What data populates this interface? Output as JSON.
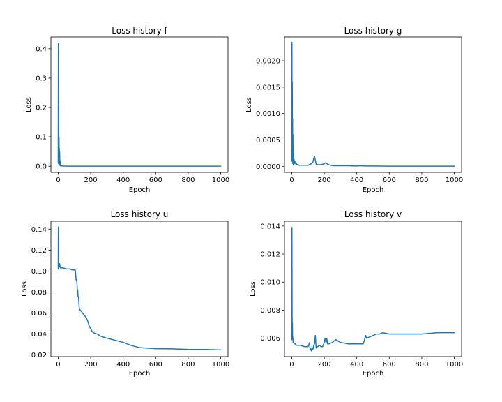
{
  "chart_data": [
    {
      "type": "line",
      "title": "Loss history f",
      "xlabel": "Epoch",
      "ylabel": "Loss",
      "xlim": [
        -45,
        1045
      ],
      "ylim": [
        -0.021,
        0.44
      ],
      "xticks": [
        "0",
        "200",
        "400",
        "600",
        "800",
        "1000"
      ],
      "xtick_values": [
        0,
        200,
        400,
        600,
        800,
        1000
      ],
      "yticks": [
        "0.0",
        "0.1",
        "0.2",
        "0.3",
        "0.4"
      ],
      "ytick_values": [
        0.0,
        0.1,
        0.2,
        0.3,
        0.4
      ],
      "color": "#1f77b4",
      "series": [
        {
          "name": "f",
          "x": [
            0,
            1,
            2,
            3,
            4,
            5,
            6,
            7,
            8,
            9,
            10,
            11,
            12,
            13,
            14,
            15,
            16,
            18,
            20,
            22,
            25,
            30,
            35,
            40,
            50,
            60,
            80,
            100,
            150,
            200,
            300,
            400,
            500,
            600,
            700,
            800,
            900,
            1000
          ],
          "y": [
            0.01,
            0.418,
            0.05,
            0.22,
            0.02,
            0.1,
            0.01,
            0.06,
            0.005,
            0.05,
            0.003,
            0.02,
            0.002,
            0.015,
            0.001,
            0.008,
            0.002,
            0.004,
            0.001,
            0.002,
            0.001,
            0.0005,
            0.0005,
            0.0003,
            0.0002,
            0.0001,
            0.0001,
            0.0001,
            0.0,
            0.0,
            0.0,
            0.0,
            0.0,
            0.0,
            0.0,
            0.0,
            0.0,
            0.0
          ]
        }
      ]
    },
    {
      "type": "line",
      "title": "Loss history g",
      "xlabel": "Epoch",
      "ylabel": "Loss",
      "xlim": [
        -45,
        1045
      ],
      "ylim": [
        -0.000115,
        0.00245
      ],
      "xticks": [
        "0",
        "200",
        "400",
        "600",
        "800",
        "1000"
      ],
      "xtick_values": [
        0,
        200,
        400,
        600,
        800,
        1000
      ],
      "yticks": [
        "0.0000",
        "0.0005",
        "0.0010",
        "0.0015",
        "0.0020"
      ],
      "ytick_values": [
        0.0,
        0.0005,
        0.001,
        0.0015,
        0.002
      ],
      "color": "#1f77b4",
      "series": [
        {
          "name": "g",
          "x": [
            0,
            1,
            2,
            3,
            4,
            5,
            6,
            7,
            8,
            9,
            10,
            11,
            12,
            13,
            14,
            15,
            16,
            18,
            20,
            22,
            25,
            28,
            30,
            35,
            40,
            45,
            50,
            60,
            70,
            80,
            100,
            120,
            130,
            135,
            140,
            150,
            160,
            180,
            200,
            210,
            220,
            240,
            260,
            300,
            350,
            400,
            420,
            450,
            500,
            600,
            700,
            800,
            900,
            1000
          ],
          "y": [
            0.0001,
            0.00235,
            0.0004,
            0.0016,
            0.0001,
            0.0009,
            5e-05,
            0.0006,
            5e-05,
            0.00035,
            2e-05,
            0.00025,
            0.0001,
            0.00015,
            8e-05,
            0.00012,
            5e-05,
            0.0001,
            6e-05,
            8e-05,
            4e-05,
            6e-05,
            4e-05,
            3e-05,
            3e-05,
            2e-05,
            2e-05,
            2e-05,
            2e-05,
            2e-05,
            2e-05,
            5e-05,
            8e-05,
            0.00015,
            0.00019,
            4e-05,
            3e-05,
            3e-05,
            5e-05,
            7e-05,
            4e-05,
            2e-05,
            1e-05,
            1e-05,
            1e-05,
            5e-06,
            1e-05,
            5e-06,
            5e-06,
            3e-06,
            3e-06,
            3e-06,
            3e-06,
            3e-06
          ]
        }
      ]
    },
    {
      "type": "line",
      "title": "Loss history u",
      "xlabel": "Epoch",
      "ylabel": "Loss",
      "xlim": [
        -45,
        1045
      ],
      "ylim": [
        0.0184,
        0.1475
      ],
      "xticks": [
        "0",
        "200",
        "400",
        "600",
        "800",
        "1000"
      ],
      "xtick_values": [
        0,
        200,
        400,
        600,
        800,
        1000
      ],
      "yticks": [
        "0.02",
        "0.04",
        "0.06",
        "0.08",
        "0.10",
        "0.12",
        "0.14"
      ],
      "ytick_values": [
        0.02,
        0.04,
        0.06,
        0.08,
        0.1,
        0.12,
        0.14
      ],
      "color": "#1f77b4",
      "series": [
        {
          "name": "u",
          "x": [
            0,
            1,
            3,
            5,
            7,
            9,
            11,
            13,
            15,
            20,
            30,
            50,
            70,
            90,
            105,
            110,
            112,
            115,
            118,
            120,
            122,
            125,
            130,
            135,
            140,
            150,
            160,
            170,
            180,
            190,
            200,
            210,
            220,
            240,
            260,
            300,
            350,
            400,
            450,
            500,
            600,
            700,
            800,
            900,
            1000
          ],
          "y": [
            0.102,
            0.142,
            0.103,
            0.106,
            0.104,
            0.107,
            0.105,
            0.103,
            0.104,
            0.103,
            0.103,
            0.102,
            0.102,
            0.101,
            0.101,
            0.092,
            0.091,
            0.09,
            0.08,
            0.082,
            0.076,
            0.075,
            0.064,
            0.063,
            0.062,
            0.06,
            0.058,
            0.056,
            0.053,
            0.048,
            0.045,
            0.042,
            0.041,
            0.04,
            0.038,
            0.036,
            0.034,
            0.032,
            0.029,
            0.027,
            0.026,
            0.0258,
            0.0253,
            0.0252,
            0.0248
          ]
        }
      ]
    },
    {
      "type": "line",
      "title": "Loss history v",
      "xlabel": "Epoch",
      "ylabel": "Loss",
      "xlim": [
        -45,
        1045
      ],
      "ylim": [
        0.00469,
        0.01434
      ],
      "xticks": [
        "0",
        "200",
        "400",
        "600",
        "800",
        "1000"
      ],
      "xtick_values": [
        0,
        200,
        400,
        600,
        800,
        1000
      ],
      "yticks": [
        "0.006",
        "0.008",
        "0.010",
        "0.012",
        "0.014"
      ],
      "ytick_values": [
        0.006,
        0.008,
        0.01,
        0.012,
        0.014
      ],
      "color": "#1f77b4",
      "series": [
        {
          "name": "v",
          "x": [
            0,
            1,
            2,
            3,
            4,
            5,
            6,
            8,
            10,
            15,
            20,
            30,
            50,
            80,
            100,
            110,
            112,
            115,
            120,
            125,
            130,
            135,
            140,
            145,
            150,
            155,
            160,
            170,
            180,
            190,
            200,
            205,
            210,
            215,
            220,
            230,
            250,
            270,
            300,
            350,
            400,
            420,
            440,
            450,
            455,
            460,
            480,
            500,
            520,
            540,
            560,
            600,
            700,
            800,
            900,
            1000
          ],
          "y": [
            0.0059,
            0.0139,
            0.0079,
            0.0061,
            0.0071,
            0.0059,
            0.0061,
            0.0057,
            0.0058,
            0.0056,
            0.0056,
            0.0055,
            0.0055,
            0.0054,
            0.0054,
            0.0057,
            0.0052,
            0.0053,
            0.0051,
            0.0053,
            0.0052,
            0.0055,
            0.0056,
            0.0062,
            0.0053,
            0.0054,
            0.0054,
            0.0055,
            0.0054,
            0.0054,
            0.0057,
            0.006,
            0.0057,
            0.006,
            0.0056,
            0.0056,
            0.0057,
            0.0059,
            0.0057,
            0.0056,
            0.0056,
            0.0056,
            0.0056,
            0.006,
            0.0062,
            0.006,
            0.0061,
            0.0062,
            0.0063,
            0.0063,
            0.0064,
            0.0063,
            0.0063,
            0.0063,
            0.0064,
            0.0064
          ]
        }
      ]
    }
  ]
}
